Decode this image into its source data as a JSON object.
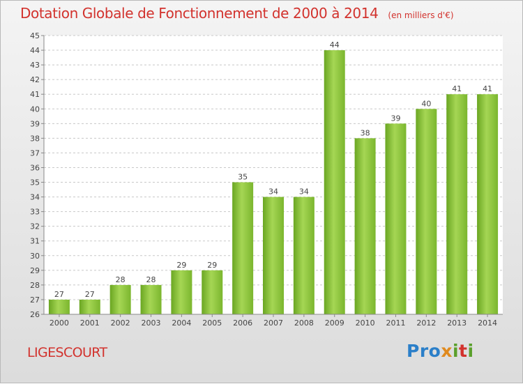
{
  "header": {
    "title": "Dotation Globale de Fonctionnement de 2000 à 2014",
    "subtitle": "(en milliers d'€)"
  },
  "commune": "LIGESCOURT",
  "logo": {
    "p1": "Pro",
    "p2": "x",
    "p3": "i",
    "p4": "t",
    "p5": "i"
  },
  "colors": {
    "title": "#d2322d",
    "bar_light": "#a5d654",
    "bar_dark": "#6aa622",
    "grid": "#c8c8c8"
  },
  "chart_data": {
    "type": "bar",
    "title": "Dotation Globale de Fonctionnement de 2000 à 2014",
    "subtitle": "(en milliers d'€)",
    "xlabel": "",
    "ylabel": "",
    "categories": [
      "2000",
      "2001",
      "2002",
      "2003",
      "2004",
      "2005",
      "2006",
      "2007",
      "2008",
      "2009",
      "2010",
      "2011",
      "2012",
      "2013",
      "2014"
    ],
    "values": [
      27,
      27,
      28,
      28,
      29,
      29,
      35,
      34,
      34,
      44,
      38,
      39,
      40,
      41,
      41
    ],
    "ylim": [
      26,
      45
    ],
    "yticks": [
      26,
      27,
      28,
      29,
      30,
      31,
      32,
      33,
      34,
      35,
      36,
      37,
      38,
      39,
      40,
      41,
      42,
      43,
      44,
      45
    ],
    "grid": true,
    "data_labels": true
  }
}
